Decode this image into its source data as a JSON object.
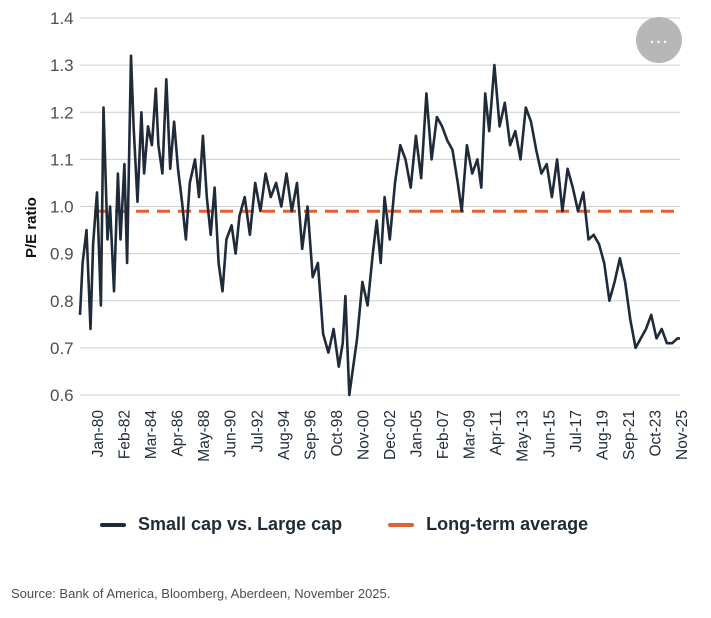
{
  "chart_data": {
    "type": "line",
    "title": "",
    "xlabel": "",
    "ylabel": "P/E ratio",
    "ylim": [
      0.6,
      1.4
    ],
    "yticks": [
      "1.4",
      "1.3",
      "1.2",
      "1.1",
      "1.0",
      "0.9",
      "0.8",
      "0.7",
      "0.6"
    ],
    "grid": true,
    "xticks": [
      "Jan-80",
      "Feb-82",
      "Mar-84",
      "Apr-86",
      "May-88",
      "Jun-90",
      "Jul-92",
      "Aug-94",
      "Sep-96",
      "Oct-98",
      "Nov-00",
      "Dec-02",
      "Jan-05",
      "Feb-07",
      "Mar-09",
      "Apr-11",
      "May-13",
      "Jun-15",
      "Jul-17",
      "Aug-19",
      "Sep-21",
      "Oct-23",
      "Nov-25"
    ],
    "series": [
      {
        "name": "Small cap vs. Large cap",
        "color": "#1f2b38",
        "x": [
          1980.0,
          1980.2,
          1980.5,
          1980.8,
          1981.0,
          1981.3,
          1981.6,
          1981.8,
          1982.1,
          1982.3,
          1982.6,
          1982.9,
          1983.1,
          1983.4,
          1983.6,
          1983.9,
          1984.1,
          1984.4,
          1984.7,
          1984.9,
          1985.2,
          1985.5,
          1985.8,
          1986.0,
          1986.3,
          1986.6,
          1986.9,
          1987.2,
          1987.5,
          1987.8,
          1988.1,
          1988.4,
          1988.8,
          1989.1,
          1989.4,
          1989.7,
          1990.0,
          1990.3,
          1990.6,
          1990.9,
          1991.2,
          1991.6,
          1991.9,
          1992.2,
          1992.6,
          1993.0,
          1993.4,
          1993.8,
          1994.2,
          1994.6,
          1995.0,
          1995.4,
          1995.8,
          1996.2,
          1996.6,
          1997.0,
          1997.4,
          1997.8,
          1998.2,
          1998.6,
          1999.0,
          1999.4,
          1999.8,
          2000.1,
          2000.3,
          2000.6,
          2000.9,
          2001.2,
          2001.6,
          2002.0,
          2002.4,
          2002.7,
          2003.0,
          2003.3,
          2003.7,
          2004.1,
          2004.5,
          2004.9,
          2005.3,
          2005.7,
          2006.1,
          2006.5,
          2006.9,
          2007.3,
          2007.7,
          2008.1,
          2008.5,
          2008.9,
          2009.2,
          2009.6,
          2010.0,
          2010.4,
          2010.7,
          2011.0,
          2011.3,
          2011.7,
          2012.1,
          2012.5,
          2012.9,
          2013.3,
          2013.7,
          2014.1,
          2014.5,
          2014.9,
          2015.3,
          2015.7,
          2016.1,
          2016.5,
          2016.9,
          2017.3,
          2017.7,
          2018.1,
          2018.5,
          2018.9,
          2019.3,
          2019.7,
          2020.1,
          2020.5,
          2020.9,
          2021.3,
          2021.7,
          2022.1,
          2022.5,
          2022.9,
          2023.3,
          2023.7,
          2024.1,
          2024.5,
          2024.9,
          2025.3,
          2025.7,
          2025.9
        ],
        "values": [
          0.77,
          0.88,
          0.95,
          0.74,
          0.92,
          1.03,
          0.79,
          1.21,
          0.93,
          1.0,
          0.82,
          1.07,
          0.93,
          1.09,
          0.88,
          1.32,
          1.17,
          1.01,
          1.2,
          1.07,
          1.17,
          1.13,
          1.25,
          1.13,
          1.07,
          1.27,
          1.08,
          1.18,
          1.08,
          1.01,
          0.93,
          1.05,
          1.1,
          1.02,
          1.15,
          1.02,
          0.94,
          1.04,
          0.88,
          0.82,
          0.93,
          0.96,
          0.9,
          0.98,
          1.02,
          0.94,
          1.05,
          0.99,
          1.07,
          1.02,
          1.05,
          1.0,
          1.07,
          0.99,
          1.05,
          0.91,
          1.0,
          0.85,
          0.88,
          0.73,
          0.69,
          0.74,
          0.66,
          0.71,
          0.81,
          0.6,
          0.66,
          0.72,
          0.84,
          0.79,
          0.9,
          0.97,
          0.88,
          1.02,
          0.93,
          1.05,
          1.13,
          1.1,
          1.04,
          1.15,
          1.06,
          1.24,
          1.1,
          1.19,
          1.17,
          1.14,
          1.12,
          1.05,
          0.99,
          1.13,
          1.07,
          1.1,
          1.04,
          1.24,
          1.16,
          1.3,
          1.17,
          1.22,
          1.13,
          1.16,
          1.1,
          1.21,
          1.18,
          1.12,
          1.07,
          1.09,
          1.02,
          1.1,
          0.99,
          1.08,
          1.04,
          0.99,
          1.03,
          0.93,
          0.94,
          0.92,
          0.88,
          0.8,
          0.84,
          0.89,
          0.84,
          0.76,
          0.7,
          0.72,
          0.74,
          0.77,
          0.72,
          0.74,
          0.71,
          0.71,
          0.72,
          0.72
        ]
      },
      {
        "name": "Long-term average",
        "color": "#e0612e",
        "value": 0.99
      }
    ],
    "legend": [
      "Small cap vs. Large cap",
      "Long-term average"
    ],
    "legend_position": "bottom"
  },
  "source_note": "Source: Bank of America, Bloomberg, Aberdeen, November 2025.",
  "more_button": {
    "icon": "more-horizontal-icon",
    "glyph": "...",
    "color": "#b7b7b7"
  }
}
